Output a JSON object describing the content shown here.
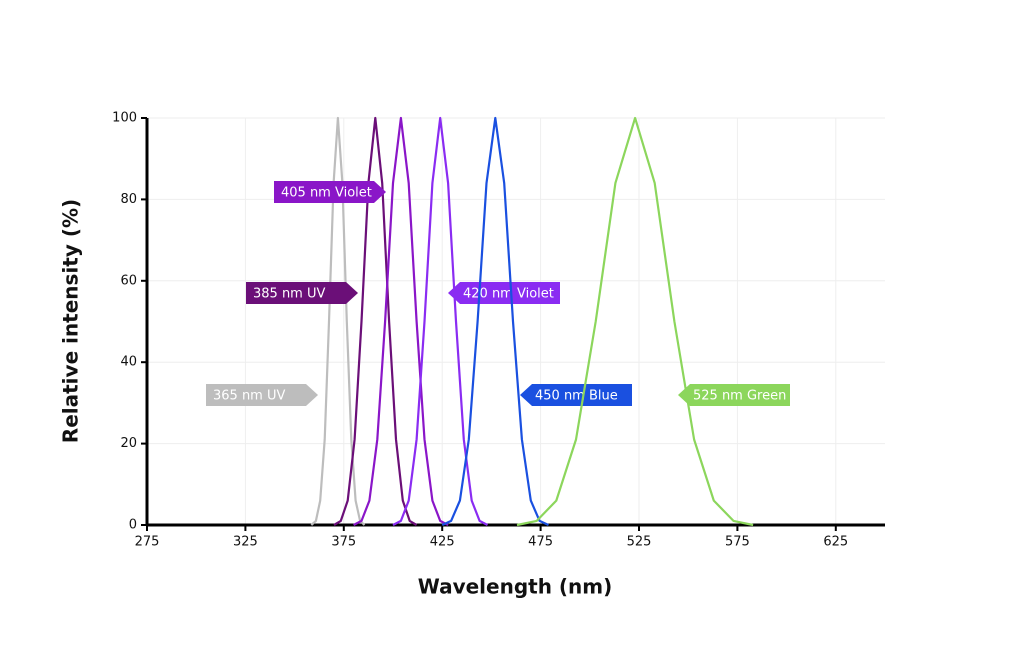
{
  "chart_data": {
    "type": "line",
    "x_label": "Wavelength (nm)",
    "y_label": "Relative intensity (%)",
    "xlim": [
      275,
      650
    ],
    "ylim": [
      0,
      100
    ],
    "xticks": [
      275,
      325,
      375,
      425,
      475,
      525,
      575,
      625
    ],
    "yticks": [
      0,
      20,
      40,
      60,
      80,
      100
    ],
    "grid": true,
    "series": [
      {
        "name": "365 nm UV",
        "color": "#bdbdbd",
        "x": [
          358.5,
          360.8,
          363,
          365.3,
          367.5,
          369.8,
          372,
          374.3,
          376.5,
          378.8,
          381,
          383.3,
          385.5
        ],
        "values": [
          0,
          1,
          6,
          21,
          50,
          84,
          100,
          84,
          50,
          21,
          6,
          1,
          0
        ]
      },
      {
        "name": "385 nm UV",
        "color": "#6b0f78",
        "x": [
          370,
          373.5,
          377,
          380.5,
          384,
          387.5,
          391,
          394.5,
          398,
          401.5,
          405,
          408.5,
          412
        ],
        "values": [
          0,
          1,
          6,
          21,
          50,
          84,
          100,
          84,
          50,
          21,
          6,
          1,
          0
        ]
      },
      {
        "name": "405 nm Violet",
        "color": "#8a16c8",
        "x": [
          380,
          384,
          388,
          392,
          396,
          400,
          404,
          408,
          412,
          416,
          420,
          424,
          428
        ],
        "values": [
          0,
          1,
          6,
          21,
          50,
          84,
          100,
          84,
          50,
          21,
          6,
          1,
          0
        ]
      },
      {
        "name": "420 nm Violet",
        "color": "#8a2cf2",
        "x": [
          400,
          404,
          408,
          412,
          416,
          420,
          424,
          428,
          432,
          436,
          440,
          444,
          448
        ],
        "values": [
          0,
          1,
          6,
          21,
          50,
          84,
          100,
          84,
          50,
          21,
          6,
          1,
          0
        ]
      },
      {
        "name": "450 nm Blue",
        "color": "#1a50e0",
        "x": [
          425,
          429.5,
          434,
          438.5,
          443,
          447.5,
          452,
          456.5,
          461,
          465.5,
          470,
          474.5,
          479
        ],
        "values": [
          0,
          1,
          6,
          21,
          50,
          84,
          100,
          84,
          50,
          21,
          6,
          1,
          0
        ]
      },
      {
        "name": "525 nm Green",
        "color": "#8cd65c",
        "x": [
          463,
          473,
          483,
          493,
          503,
          513,
          523,
          533,
          543,
          553,
          563,
          573,
          583
        ],
        "values": [
          0,
          1,
          6,
          21,
          50,
          84,
          100,
          84,
          50,
          21,
          6,
          1,
          0
        ]
      }
    ]
  }
}
